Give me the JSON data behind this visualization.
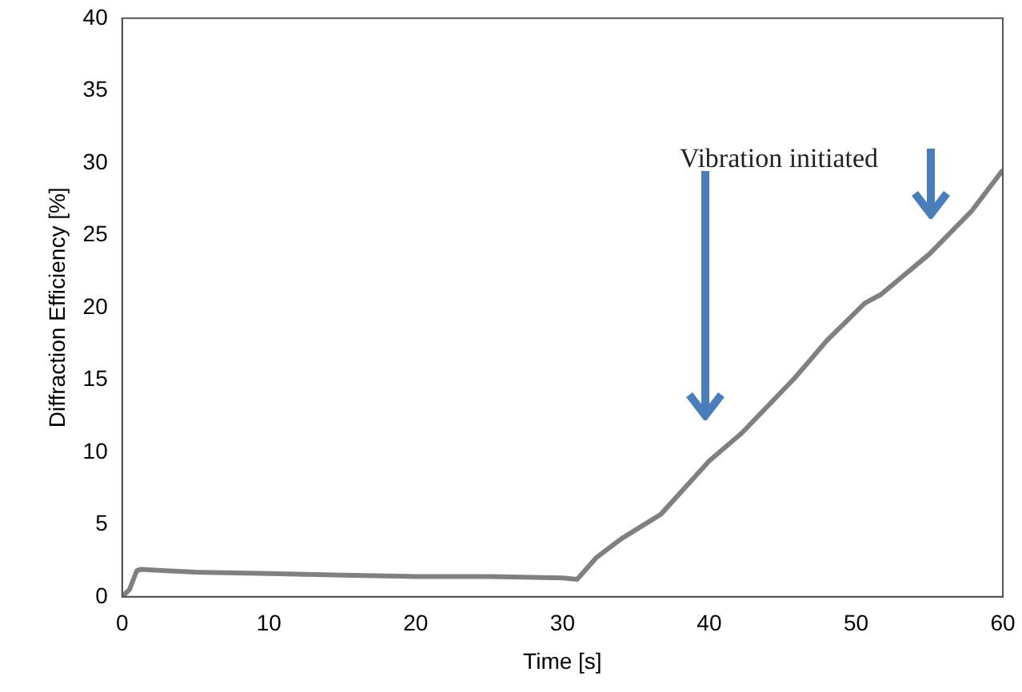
{
  "chart_data": {
    "type": "line",
    "xlabel": "Time [s]",
    "ylabel": "Diffraction Efficiency [%]",
    "series": [
      {
        "color": "#808080",
        "x": [
          0,
          0.5,
          1,
          1.3,
          3,
          5,
          10,
          15,
          20,
          25,
          30,
          31,
          32.3,
          34,
          36.7,
          40,
          42.2,
          45.8,
          48,
          50.6,
          51.7,
          55,
          57.9,
          60
        ],
        "values": [
          0,
          0.5,
          1.8,
          1.9,
          1.8,
          1.7,
          1.6,
          1.5,
          1.4,
          1.4,
          1.3,
          1.2,
          2.7,
          4,
          5.7,
          9.4,
          11.3,
          15.1,
          17.7,
          20.3,
          20.9,
          23.7,
          26.7,
          29.5
        ]
      }
    ],
    "xlim": [
      0,
      60
    ],
    "xticks": [
      0,
      10,
      20,
      30,
      40,
      50,
      60
    ],
    "ylim": [
      0,
      40
    ],
    "yticks": [
      0,
      5,
      10,
      15,
      20,
      25,
      30,
      35,
      40
    ],
    "grid": false,
    "legend": false,
    "marker": "none",
    "line_style": "solid",
    "annotations": [
      "Vibration initiated"
    ]
  }
}
